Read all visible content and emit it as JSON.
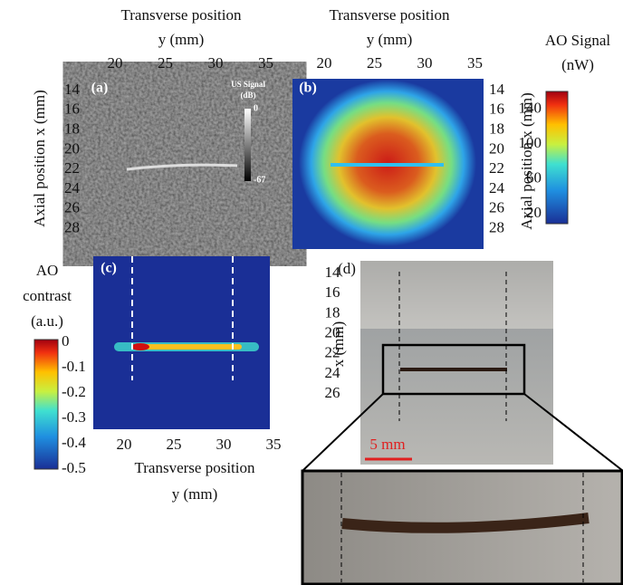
{
  "panel_a": {
    "label": "(a)",
    "x_title": "Transverse position",
    "x_unit": "y (mm)",
    "y_title": "Axial position x (mm)",
    "xticks": [
      20,
      25,
      30,
      35
    ],
    "yticks": [
      14,
      16,
      18,
      20,
      22,
      24,
      26,
      28
    ],
    "colorbar": {
      "title_line1": "US Signal",
      "title_line2": "(dB)",
      "max": 0,
      "min": -67
    }
  },
  "panel_b": {
    "label": "(b)",
    "x_title": "Transverse position",
    "x_unit": "y (mm)",
    "y_title": "Axial position x (mm)",
    "xticks": [
      20,
      25,
      30,
      35
    ],
    "yticks": [
      14,
      16,
      18,
      20,
      22,
      24,
      26,
      28
    ],
    "colorbar": {
      "title_line1": "AO Signal",
      "title_line2": "(nW)",
      "ticks": [
        140,
        100,
        60,
        20
      ]
    }
  },
  "panel_c": {
    "label": "(c)",
    "x_title": "Transverse position",
    "x_unit": "y (mm)",
    "xticks": [
      20,
      25,
      30,
      35
    ],
    "colorbar": {
      "title_line1": "AO",
      "title_line2": "contrast",
      "title_line3": "(a.u.)",
      "ticks": [
        "0",
        "-0.1",
        "-0.2",
        "-0.3",
        "-0.4",
        "-0.5"
      ]
    }
  },
  "panel_d": {
    "label": "(d)",
    "y_title": "x (mm)",
    "yticks": [
      14,
      16,
      18,
      20,
      22,
      24,
      26
    ],
    "scale_bar": "5 mm"
  }
}
